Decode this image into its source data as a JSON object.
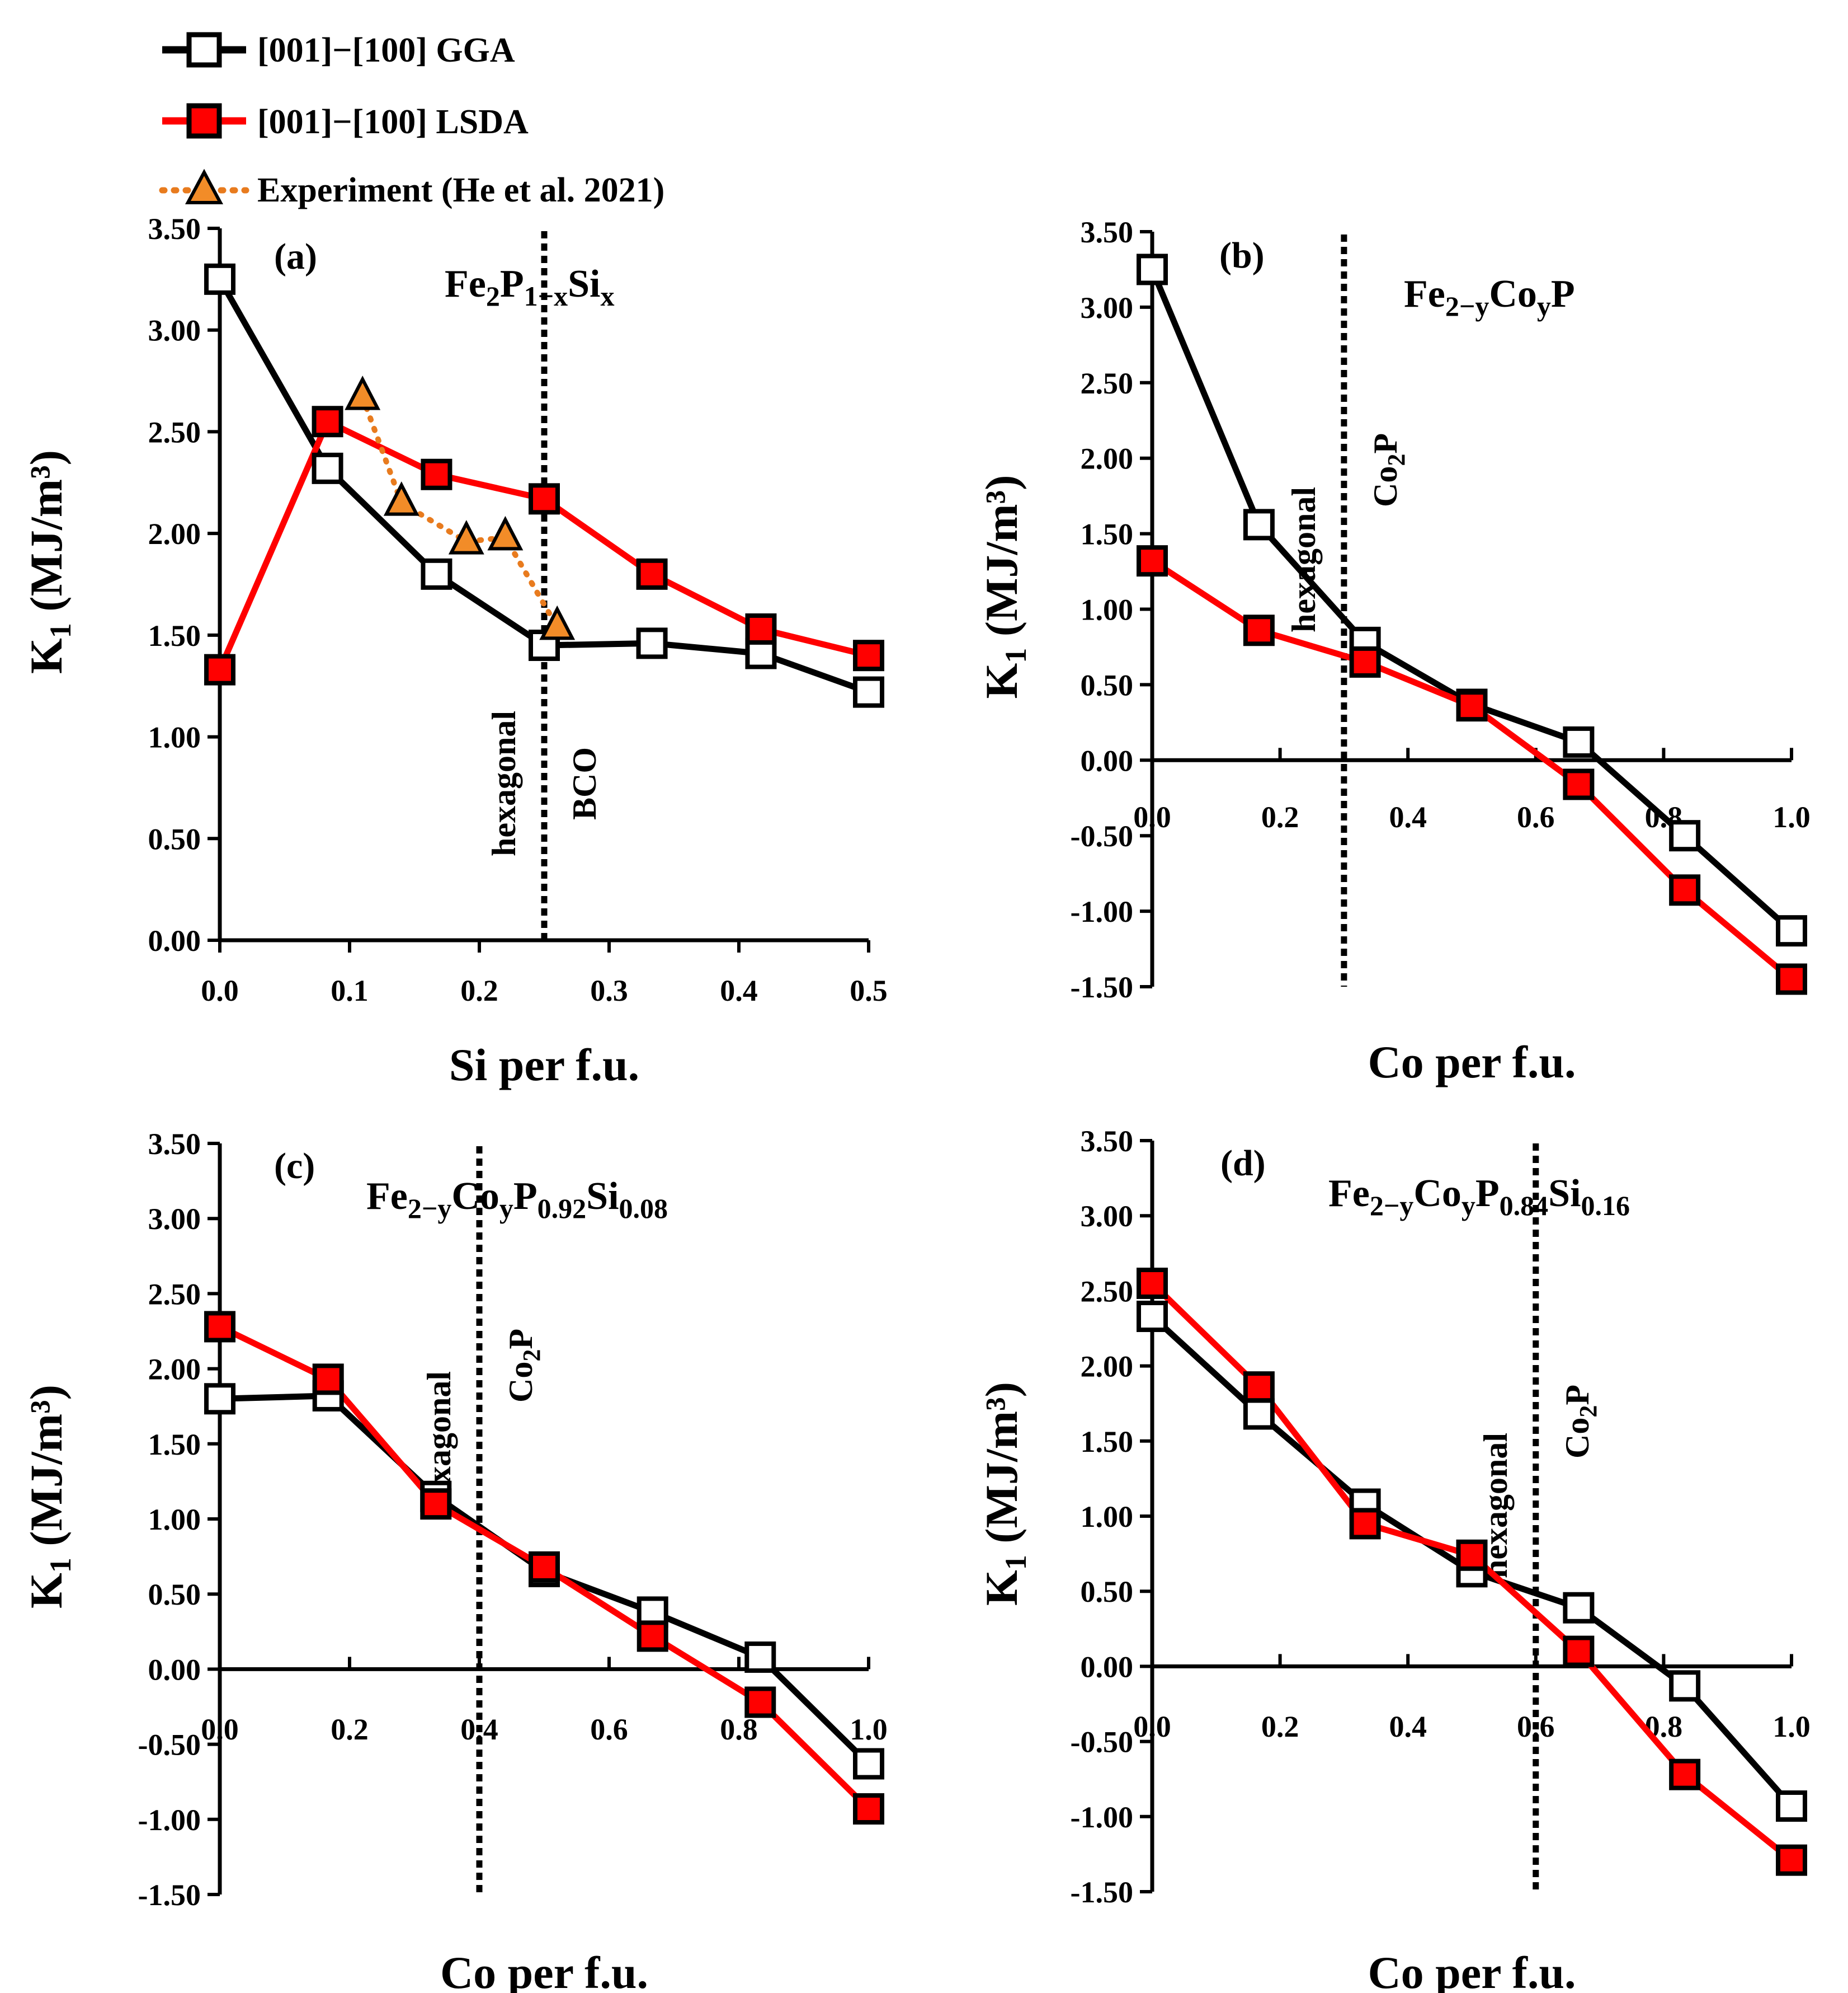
{
  "colors": {
    "gga_line": "#000000",
    "gga_marker": "#ffffff",
    "lsda_line": "#ff0000",
    "lsda_marker": "#ff0000",
    "experiment_line": "#e87b1e",
    "experiment_marker": "#f28c28",
    "boundary": "#000000"
  },
  "legend": {
    "gga": "[001]−[100] GGA",
    "lsda": "[001]−[100] LSDA",
    "experiment": "Experiment (He et al. 2021)"
  },
  "chart_data": [
    {
      "id": "a",
      "type": "line",
      "panel_label": "(a)",
      "formula": {
        "base": [
          "Fe",
          "2",
          "P",
          "1−x",
          "Si",
          "x"
        ]
      },
      "xlabel": "Si per f.u.",
      "ylabel": "K1 (MJ/m³)",
      "xlim": [
        0,
        0.5
      ],
      "ylim": [
        0,
        3.5
      ],
      "xticks": [
        0,
        0.1,
        0.2,
        0.3,
        0.4,
        0.5
      ],
      "xtick_labels": [
        "0.0",
        "0.1",
        "0.2",
        "0.3",
        "0.4",
        "0.5"
      ],
      "yticks": [
        0,
        0.5,
        1.0,
        1.5,
        2.0,
        2.5,
        3.0,
        3.5
      ],
      "ytick_labels": [
        "0.00",
        "0.50",
        "1.00",
        "1.50",
        "2.00",
        "2.50",
        "3.00",
        "3.50"
      ],
      "boundary": {
        "x": 0.25,
        "left_label": "hexagonal",
        "right_label": "BCO"
      },
      "series": [
        {
          "name": "[001]−[100] GGA",
          "x": [
            0,
            0.083,
            0.167,
            0.25,
            0.333,
            0.417,
            0.5
          ],
          "values": [
            3.25,
            2.32,
            1.8,
            1.45,
            1.46,
            1.41,
            1.22
          ]
        },
        {
          "name": "[001]−[100] LSDA",
          "x": [
            0,
            0.083,
            0.167,
            0.25,
            0.333,
            0.417,
            0.5
          ],
          "values": [
            1.33,
            2.55,
            2.29,
            2.17,
            1.8,
            1.53,
            1.4
          ]
        },
        {
          "name": "Experiment (He et al. 2021)",
          "x": [
            0.11,
            0.14,
            0.19,
            0.22,
            0.26
          ],
          "values": [
            2.67,
            2.15,
            1.96,
            1.98,
            1.54
          ]
        }
      ]
    },
    {
      "id": "b",
      "type": "line",
      "panel_label": "(b)",
      "formula": {
        "base": [
          "Fe",
          "2−y",
          "Co",
          "y",
          "P",
          ""
        ]
      },
      "xlabel": "Co per f.u.",
      "ylabel": "K1 (MJ/m³)",
      "xlim": [
        0,
        1.0
      ],
      "ylim": [
        -1.5,
        3.5
      ],
      "xticks": [
        0,
        0.2,
        0.4,
        0.6,
        0.8,
        1.0
      ],
      "xtick_labels": [
        "0.0",
        "0.2",
        "0.4",
        "0.6",
        "0.8",
        "1.0"
      ],
      "yticks": [
        -1.5,
        -1.0,
        -0.5,
        0,
        0.5,
        1.0,
        1.5,
        2.0,
        2.5,
        3.0,
        3.5
      ],
      "ytick_labels": [
        "-1.50",
        "-1.00",
        "-0.50",
        "0.00",
        "0.50",
        "1.00",
        "1.50",
        "2.00",
        "2.50",
        "3.00",
        "3.50"
      ],
      "boundary": {
        "x": 0.3,
        "left_label": "hexagonal",
        "right_label": "Co2P"
      },
      "series": [
        {
          "name": "[001]−[100] GGA",
          "x": [
            0,
            0.167,
            0.333,
            0.5,
            0.667,
            0.833,
            1.0
          ],
          "values": [
            3.25,
            1.56,
            0.78,
            0.37,
            0.12,
            -0.5,
            -1.13
          ]
        },
        {
          "name": "[001]−[100] LSDA",
          "x": [
            0,
            0.167,
            0.333,
            0.5,
            0.667,
            0.833,
            1.0
          ],
          "values": [
            1.32,
            0.86,
            0.65,
            0.36,
            -0.16,
            -0.86,
            -1.45
          ]
        }
      ]
    },
    {
      "id": "c",
      "type": "line",
      "panel_label": "(c)",
      "formula": {
        "base": [
          "Fe",
          "2−y",
          "Co",
          "y",
          "P",
          "0.92",
          "Si",
          "0.08"
        ]
      },
      "xlabel": "Co per f.u.",
      "ylabel": "K1 (MJ/m³)",
      "xlim": [
        0,
        1.0
      ],
      "ylim": [
        -1.5,
        3.5
      ],
      "xticks": [
        0,
        0.2,
        0.4,
        0.6,
        0.8,
        1.0
      ],
      "xtick_labels": [
        "0.0",
        "0.2",
        "0.4",
        "0.6",
        "0.8",
        "1.0"
      ],
      "yticks": [
        -1.5,
        -1.0,
        -0.5,
        0,
        0.5,
        1.0,
        1.5,
        2.0,
        2.5,
        3.0,
        3.5
      ],
      "ytick_labels": [
        "-1.50",
        "-1.00",
        "-0.50",
        "0.00",
        "0.50",
        "1.00",
        "1.50",
        "2.00",
        "2.50",
        "3.00",
        "3.50"
      ],
      "boundary": {
        "x": 0.4,
        "left_label": "hexagonal",
        "right_label": "Co2P"
      },
      "series": [
        {
          "name": "[001]−[100] GGA",
          "x": [
            0,
            0.167,
            0.333,
            0.5,
            0.667,
            0.833,
            1.0
          ],
          "values": [
            1.8,
            1.82,
            1.15,
            0.65,
            0.38,
            0.08,
            -0.63
          ]
        },
        {
          "name": "[001]−[100] LSDA",
          "x": [
            0,
            0.167,
            0.333,
            0.5,
            0.667,
            0.833,
            1.0
          ],
          "values": [
            2.28,
            1.93,
            1.1,
            0.68,
            0.22,
            -0.22,
            -0.93
          ]
        }
      ]
    },
    {
      "id": "d",
      "type": "line",
      "panel_label": "(d)",
      "formula": {
        "base": [
          "Fe",
          "2−y",
          "Co",
          "y",
          "P",
          "0.84",
          "Si",
          "0.16"
        ]
      },
      "xlabel": "Co per f.u.",
      "ylabel": "K1 (MJ/m³)",
      "xlim": [
        0,
        1.0
      ],
      "ylim": [
        -1.5,
        3.5
      ],
      "xticks": [
        0,
        0.2,
        0.4,
        0.6,
        0.8,
        1.0
      ],
      "xtick_labels": [
        "0.0",
        "0.2",
        "0.4",
        "0.6",
        "0.8",
        "1.0"
      ],
      "yticks": [
        -1.5,
        -1.0,
        -0.5,
        0,
        0.5,
        1.0,
        1.5,
        2.0,
        2.5,
        3.0,
        3.5
      ],
      "ytick_labels": [
        "-1.50",
        "-1.00",
        "-0.50",
        "0.00",
        "0.50",
        "1.00",
        "1.50",
        "2.00",
        "2.50",
        "3.00",
        "3.50"
      ],
      "boundary": {
        "x": 0.6,
        "left_label": "hexagonal",
        "right_label": "Co2P"
      },
      "series": [
        {
          "name": "[001]−[100] GGA",
          "x": [
            0,
            0.167,
            0.333,
            0.5,
            0.667,
            0.833,
            1.0
          ],
          "values": [
            2.33,
            1.68,
            1.08,
            0.63,
            0.39,
            -0.13,
            -0.93
          ]
        },
        {
          "name": "[001]−[100] LSDA",
          "x": [
            0,
            0.167,
            0.333,
            0.5,
            0.667,
            0.833,
            1.0
          ],
          "values": [
            2.55,
            1.86,
            0.95,
            0.74,
            0.1,
            -0.72,
            -1.29
          ]
        }
      ]
    }
  ]
}
